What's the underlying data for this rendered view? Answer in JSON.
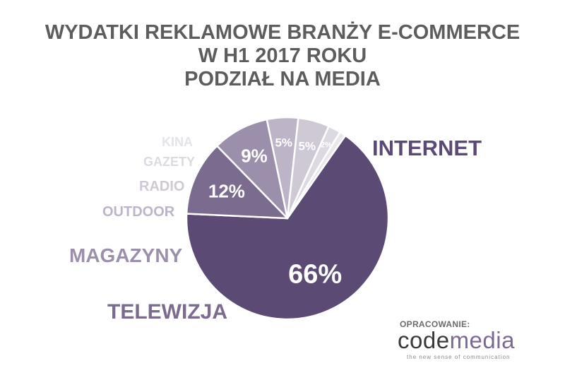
{
  "chart_data": {
    "type": "pie",
    "title_lines": [
      "WYDATKI REKLAMOWE BRANŻY E-COMMERCE",
      "W H1 2017 ROKU",
      "PODZIAŁ NA MEDIA"
    ],
    "slices": [
      {
        "label": "INTERNET",
        "value": 66,
        "value_label": "66%",
        "color": "#5b4a73"
      },
      {
        "label": "TELEWIZJA",
        "value": 12,
        "value_label": "12%",
        "color": "#7b6b8f"
      },
      {
        "label": "MAGAZYNY",
        "value": 9,
        "value_label": "9%",
        "color": "#9c8fab"
      },
      {
        "label": "OUTDOOR",
        "value": 5,
        "value_label": "5%",
        "color": "#bdb5c7"
      },
      {
        "label": "RADIO",
        "value": 5,
        "value_label": "5%",
        "color": "#cfc9d6"
      },
      {
        "label": "GAZETY",
        "value": 2,
        "value_label": "2%",
        "color": "#ddd9e2"
      },
      {
        "label": "KINA",
        "value": 1,
        "value_label": "",
        "color": "#e9e6ec"
      }
    ]
  },
  "footer": {
    "credit": "OPRACOWANIE:",
    "logo_code": "code",
    "logo_media": "media",
    "tagline": "the new sense of communication"
  }
}
